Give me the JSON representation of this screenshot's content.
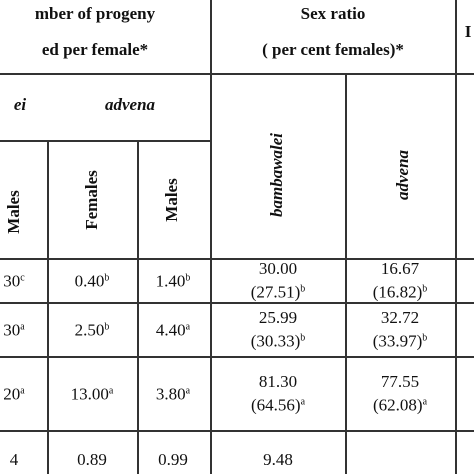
{
  "header": {
    "progeny": [
      "mber of progeny",
      "ed per female*"
    ],
    "sex_ratio": [
      "Sex ratio",
      "( per cent females)*"
    ],
    "last": "I",
    "species": [
      "ei",
      "advena"
    ],
    "sexes": [
      "Males",
      "Females",
      "Males"
    ],
    "sr_species": [
      "bambawalei",
      "advena"
    ]
  },
  "table": {
    "rows": [
      [
        [
          {
            "text": "30",
            "sup": "c"
          }
        ],
        [
          {
            "text": "0.40",
            "sup": "b"
          }
        ],
        [
          {
            "text": "1.40",
            "sup": "b"
          }
        ],
        [
          {
            "text": "30.00"
          },
          {
            "text": "(27.51)",
            "sup": "b"
          }
        ],
        [
          {
            "text": "16.67"
          },
          {
            "text": "(16.82)",
            "sup": "b"
          }
        ]
      ],
      [
        [
          {
            "text": "30",
            "sup": "a"
          }
        ],
        [
          {
            "text": "2.50",
            "sup": "b"
          }
        ],
        [
          {
            "text": "4.40",
            "sup": "a"
          }
        ],
        [
          {
            "text": "25.99"
          },
          {
            "text": "(30.33)",
            "sup": "b"
          }
        ],
        [
          {
            "text": "32.72"
          },
          {
            "text": "(33.97)",
            "sup": "b"
          }
        ]
      ],
      [
        [
          {
            "text": "20",
            "sup": "a"
          }
        ],
        [
          {
            "text": "13.00",
            "sup": "a"
          }
        ],
        [
          {
            "text": "3.80",
            "sup": "a"
          }
        ],
        [
          {
            "text": "81.30"
          },
          {
            "text": "(64.56)",
            "sup": "a"
          }
        ],
        [
          {
            "text": "77.55"
          },
          {
            "text": "(62.08)",
            "sup": "a"
          }
        ]
      ],
      [
        [
          {
            "text": "4"
          }
        ],
        [
          {
            "text": "0.89"
          }
        ],
        [
          {
            "text": "0.99"
          }
        ],
        [
          {
            "text": "9.48"
          }
        ],
        []
      ]
    ]
  }
}
